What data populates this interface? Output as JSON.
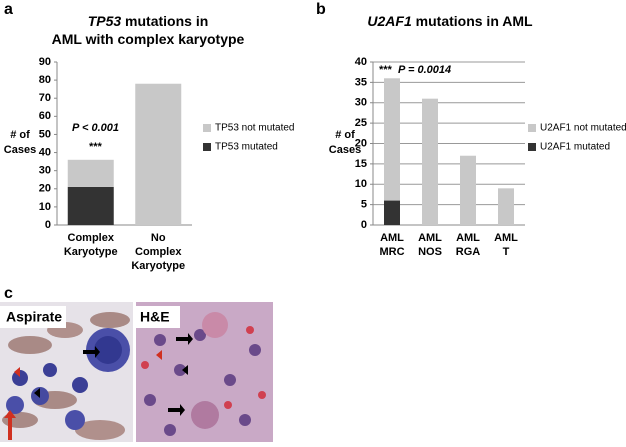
{
  "chart_data": [
    {
      "type": "stacked-bar",
      "panel": "a",
      "title_lines": [
        [
          {
            "text": "TP53",
            "italic": true
          },
          {
            "text": " mutations in"
          }
        ],
        [
          {
            "text": "AML with complex karyotype"
          }
        ]
      ],
      "y_label": [
        "# of",
        "Cases"
      ],
      "categories": [
        [
          "Complex",
          "Karyotype"
        ],
        [
          "No",
          "Complex",
          "Karyotype"
        ]
      ],
      "series": [
        {
          "name": "TP53 mutated",
          "color": "#333333",
          "values": [
            21,
            0
          ]
        },
        {
          "name": "TP53 not mutated",
          "color": "#c8c8c8",
          "values": [
            15,
            78
          ]
        }
      ],
      "annotations": [
        "P < 0.001",
        "***"
      ],
      "ylim": [
        0,
        90
      ],
      "yticks": [
        0,
        10,
        20,
        30,
        40,
        50,
        60,
        70,
        80,
        90
      ],
      "grid": false
    },
    {
      "type": "stacked-bar",
      "panel": "b",
      "title_lines": [
        [
          {
            "text": "U2AF1",
            "italic": true
          },
          {
            "text": " mutations in AML"
          }
        ]
      ],
      "y_label": [
        "# of",
        "Cases"
      ],
      "categories": [
        [
          "AML",
          "MRC"
        ],
        [
          "AML",
          "NOS"
        ],
        [
          "AML",
          "RGA"
        ],
        [
          "AML",
          "T"
        ]
      ],
      "series": [
        {
          "name": "U2AF1 mutated",
          "color": "#333333",
          "values": [
            6,
            0,
            0,
            0
          ]
        },
        {
          "name": "U2AF1 not mutated",
          "color": "#c8c8c8",
          "values": [
            30,
            31,
            17,
            9
          ]
        }
      ],
      "annotations": [
        "***",
        "P = 0.0014"
      ],
      "ylim": [
        0,
        40
      ],
      "yticks": [
        0,
        5,
        10,
        15,
        20,
        25,
        30,
        35,
        40
      ],
      "grid": true
    }
  ],
  "images": {
    "panel": "c",
    "labels": [
      "Aspirate",
      "H&E"
    ]
  }
}
